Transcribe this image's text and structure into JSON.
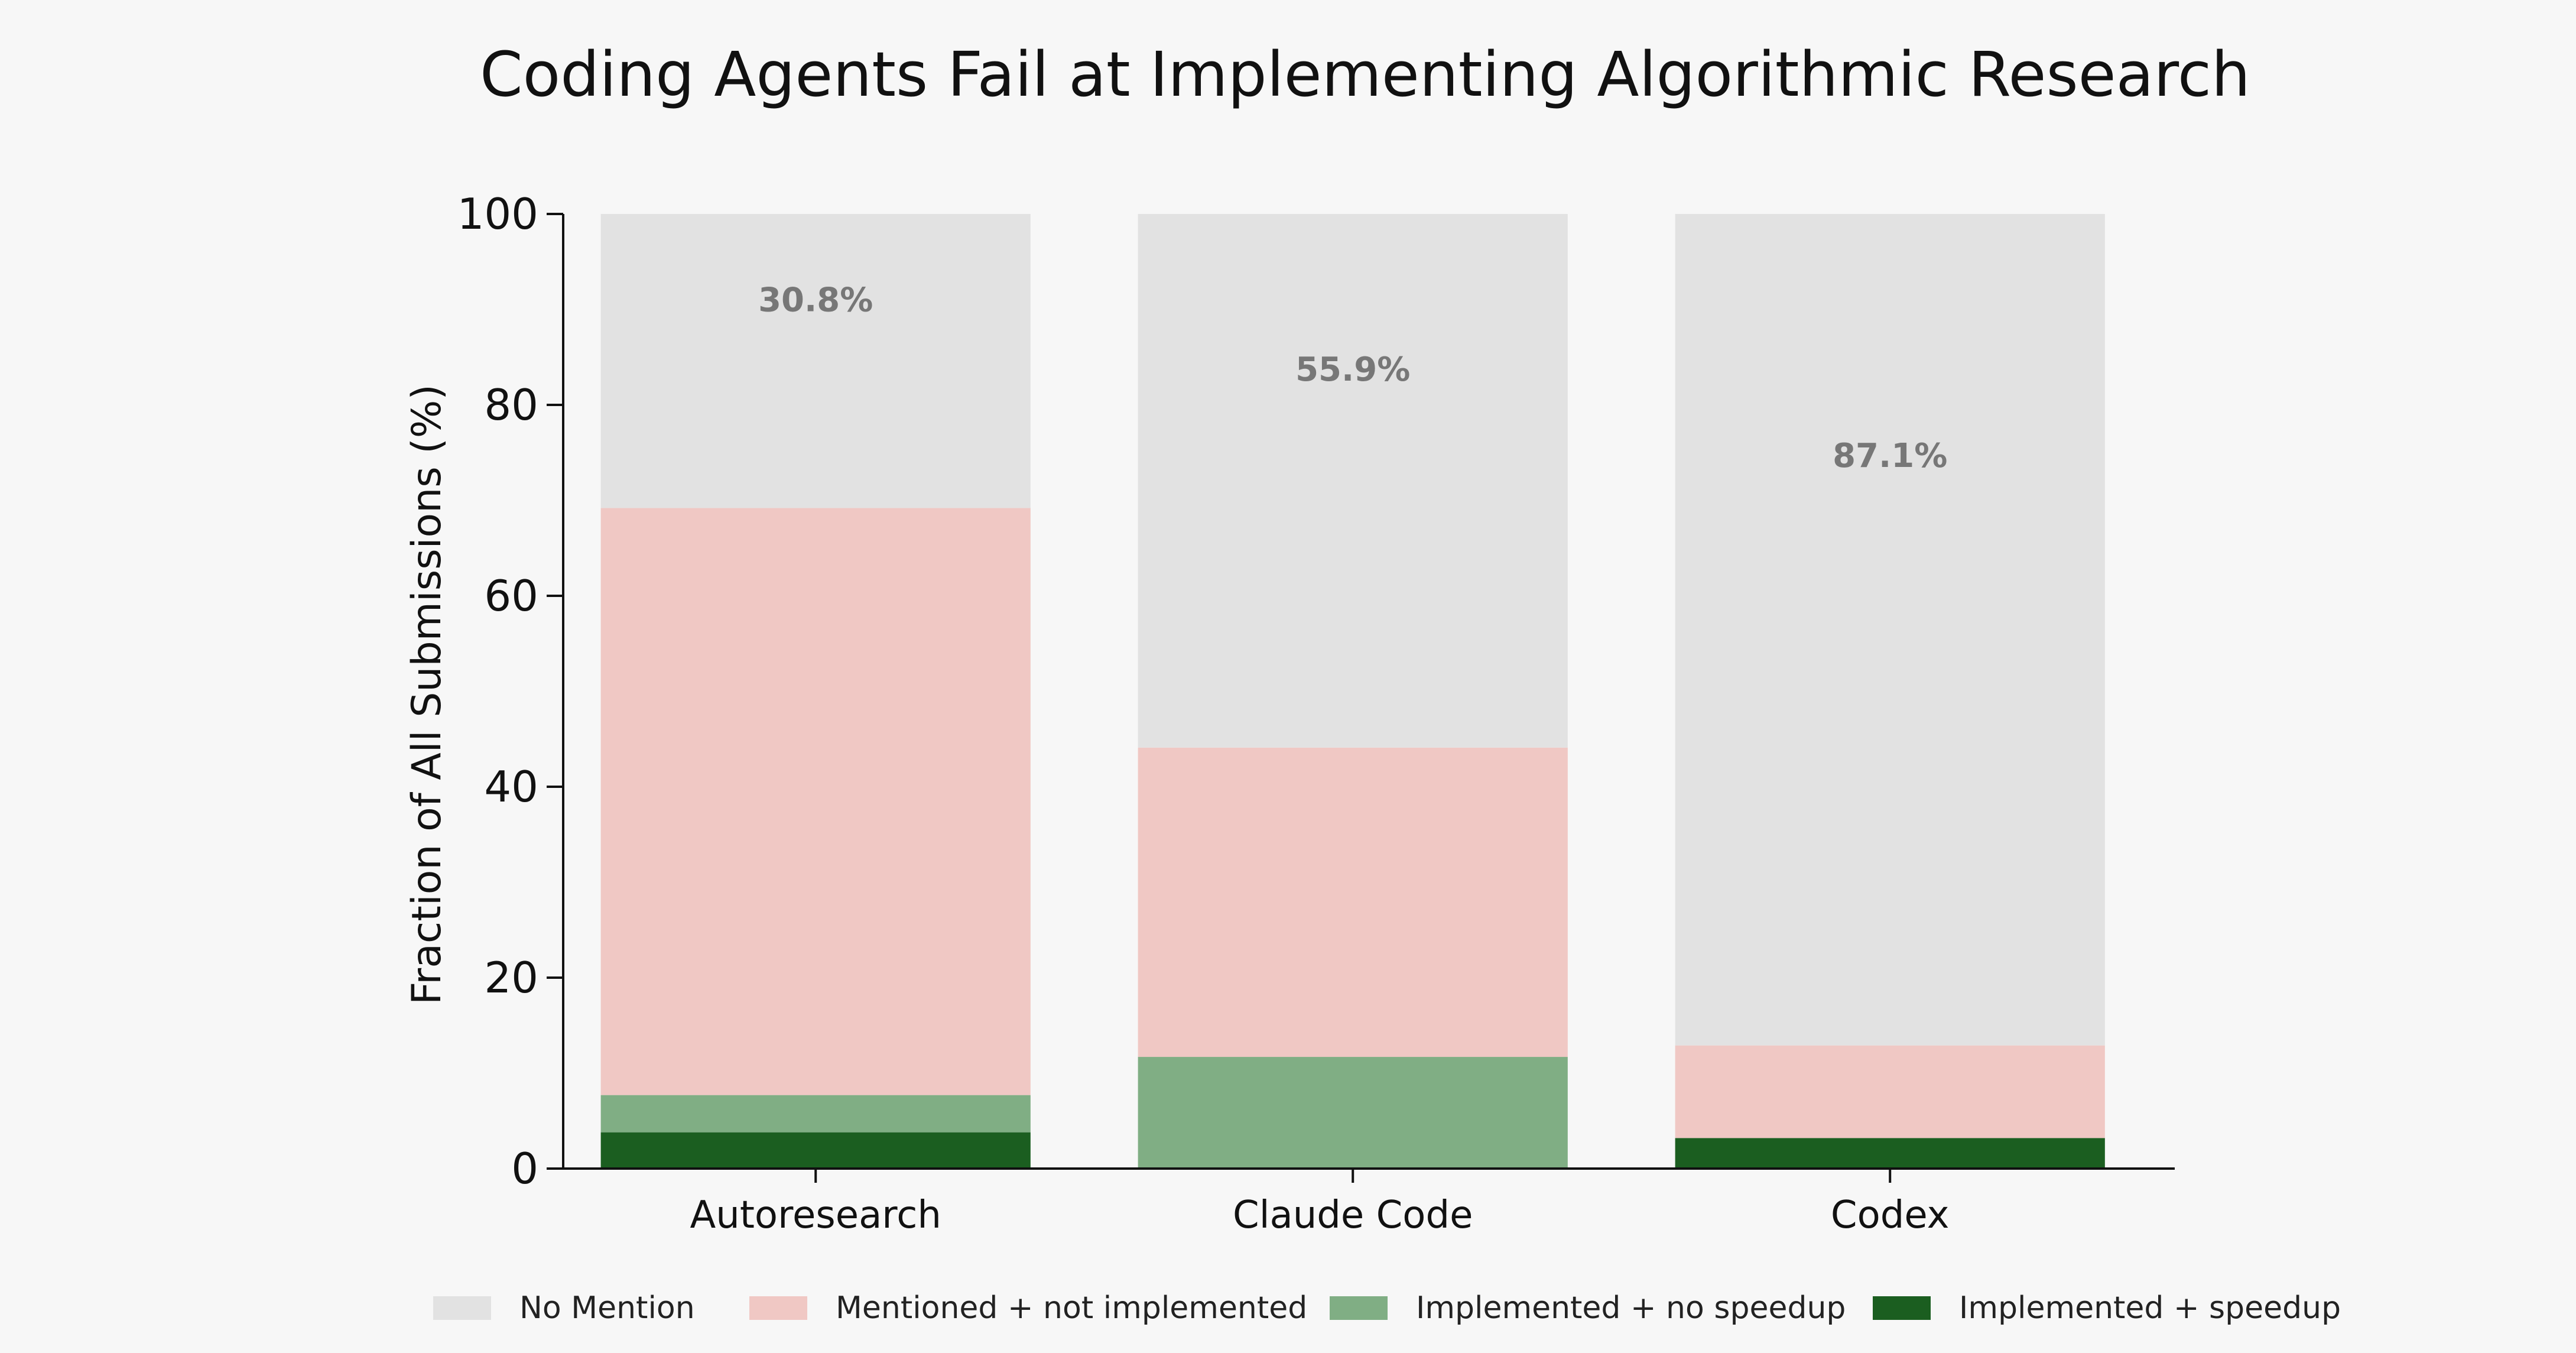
{
  "chart_data": {
    "type": "bar",
    "stacked": true,
    "title": "Coding Agents Fail at Implementing Algorithmic Research",
    "xlabel": "",
    "ylabel": "Fraction of All Submissions (%)",
    "ylim": [
      0,
      100
    ],
    "yticks": [
      "0",
      "20",
      "40",
      "60",
      "80",
      "100"
    ],
    "grid": false,
    "legend_position": "bottom",
    "categories": [
      "Autoresearch",
      "Claude Code",
      "Codex"
    ],
    "series": [
      {
        "name": "Implemented + speedup",
        "color": "#1b5e20",
        "values": [
          3.8,
          0,
          3.2
        ]
      },
      {
        "name": "Implemented + no speedup",
        "color": "#80ae84",
        "values": [
          3.9,
          11.7,
          0
        ]
      },
      {
        "name": "Mentioned + not implemented",
        "color": "#f0c8c4",
        "values": [
          61.5,
          32.4,
          9.7
        ]
      },
      {
        "name": "No Mention",
        "color": "#e2e2e2",
        "values": [
          30.8,
          55.9,
          87.1
        ]
      }
    ],
    "annotations": [
      "30.8%",
      "55.9%",
      "87.1%"
    ],
    "legend_order": [
      "No Mention",
      "Mentioned + not implemented",
      "Implemented + no speedup",
      "Implemented + speedup"
    ]
  }
}
